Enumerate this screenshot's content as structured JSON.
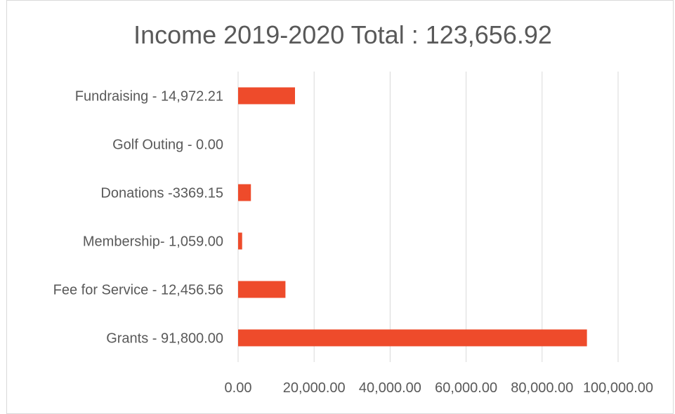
{
  "chart_data": {
    "type": "bar",
    "orientation": "horizontal",
    "title": "Income 2019-2020 Total : 123,656.92",
    "xlabel": "",
    "ylabel": "",
    "categories": [
      "Fundraising - 14,972.21",
      "Golf Outing - 0.00",
      "Donations -3369.15",
      "Membership- 1,059.00",
      "Fee for Service - 12,456.56",
      "Grants - 91,800.00"
    ],
    "values": [
      14972.21,
      0,
      3369.15,
      1059.0,
      12456.56,
      91800.0
    ],
    "xlim": [
      0,
      100000
    ],
    "x_ticks": [
      0,
      20000,
      40000,
      60000,
      80000,
      100000
    ],
    "x_tick_labels": [
      "0.00",
      "20,000.00",
      "40,000.00",
      "60,000.00",
      "80,000.00",
      "100,000.00"
    ],
    "grid": "vertical",
    "legend": "none",
    "bar_color": "#EE4B2B",
    "grid_color": "#d9d9d9"
  }
}
